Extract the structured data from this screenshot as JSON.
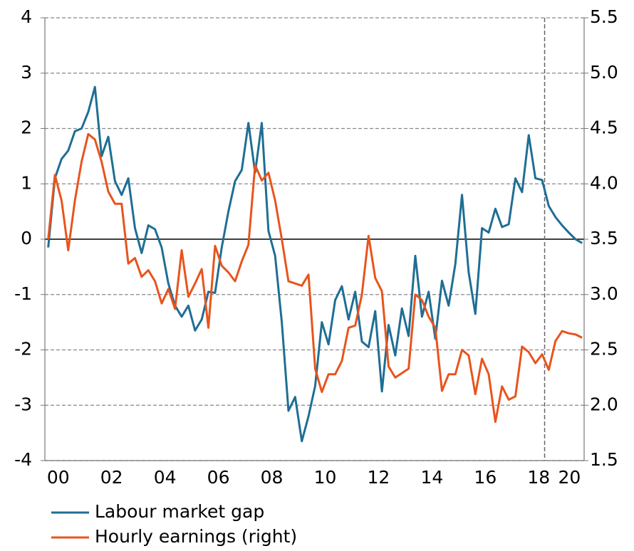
{
  "chart_data": {
    "type": "line",
    "x": [
      0.125,
      0.375,
      0.625,
      0.875,
      1.125,
      1.375,
      1.625,
      1.875,
      2.125,
      2.375,
      2.625,
      2.875,
      3.125,
      3.375,
      3.625,
      3.875,
      4.125,
      4.375,
      4.625,
      4.875,
      5.125,
      5.375,
      5.625,
      5.875,
      6.125,
      6.375,
      6.625,
      6.875,
      7.125,
      7.375,
      7.625,
      7.875,
      8.125,
      8.375,
      8.625,
      8.875,
      9.125,
      9.375,
      9.625,
      9.875,
      10.125,
      10.375,
      10.625,
      10.875,
      11.125,
      11.375,
      11.625,
      11.875,
      12.125,
      12.375,
      12.625,
      12.875,
      13.125,
      13.375,
      13.625,
      13.875,
      14.125,
      14.375,
      14.625,
      14.875,
      15.125,
      15.375,
      15.625,
      15.875,
      16.125,
      16.375,
      16.625,
      16.875,
      17.125,
      17.375,
      17.625,
      17.875,
      18.125,
      18.375,
      18.625,
      18.875,
      19.125,
      19.375,
      19.625,
      19.875,
      20.125
    ],
    "series": [
      {
        "name": "Labour market gap",
        "color": "#1f6e94",
        "axis": "y",
        "values": [
          -0.15,
          1.1,
          1.45,
          1.6,
          1.95,
          2.0,
          2.3,
          2.75,
          1.5,
          1.85,
          1.05,
          0.8,
          1.1,
          0.2,
          -0.25,
          0.25,
          0.18,
          -0.15,
          -0.8,
          -1.2,
          -1.4,
          -1.2,
          -1.65,
          -1.45,
          -0.95,
          -0.97,
          -0.15,
          0.5,
          1.05,
          1.25,
          2.1,
          1.2,
          2.1,
          0.15,
          -0.3,
          -1.5,
          -3.1,
          -2.85,
          -3.65,
          -3.2,
          -2.65,
          -1.5,
          -1.9,
          -1.1,
          -0.85,
          -1.45,
          -0.95,
          -1.85,
          -1.95,
          -1.3,
          -2.75,
          -1.55,
          -2.1,
          -1.25,
          -1.75,
          -0.3,
          -1.4,
          -0.95,
          -1.8,
          -0.75,
          -1.2,
          -0.45,
          0.8,
          -0.6,
          -1.35,
          0.2,
          0.12,
          0.55,
          0.22,
          0.27,
          1.1,
          0.85,
          1.88,
          1.1,
          1.07,
          0.6,
          0.4,
          0.25,
          0.12,
          0.0,
          -0.07
        ]
      },
      {
        "name": "Hourly earnings (right)",
        "color": "#e8541c",
        "axis": "y2",
        "values": [
          3.5,
          4.08,
          3.85,
          3.4,
          3.85,
          4.2,
          4.45,
          4.4,
          4.2,
          3.93,
          3.82,
          3.82,
          3.28,
          3.33,
          3.16,
          3.22,
          3.12,
          2.92,
          3.05,
          2.87,
          3.4,
          2.98,
          3.1,
          3.23,
          2.7,
          3.44,
          3.26,
          3.2,
          3.12,
          3.3,
          3.45,
          4.17,
          4.03,
          4.1,
          3.85,
          3.5,
          3.12,
          3.1,
          3.08,
          3.18,
          2.33,
          2.12,
          2.28,
          2.28,
          2.4,
          2.7,
          2.72,
          3.0,
          3.53,
          3.15,
          3.03,
          2.35,
          2.25,
          2.29,
          2.33,
          3.0,
          2.95,
          2.8,
          2.7,
          2.13,
          2.28,
          2.28,
          2.5,
          2.45,
          2.1,
          2.42,
          2.28,
          1.85,
          2.17,
          2.05,
          2.08,
          2.53,
          2.48,
          2.38,
          2.46,
          2.32,
          2.58,
          2.67,
          2.65,
          2.64,
          2.61
        ]
      }
    ],
    "xlim": [
      0,
      20.2
    ],
    "xticks": [
      {
        "value": 0.5,
        "label": "00"
      },
      {
        "value": 2.5,
        "label": "02"
      },
      {
        "value": 4.5,
        "label": "04"
      },
      {
        "value": 6.5,
        "label": "06"
      },
      {
        "value": 8.5,
        "label": "08"
      },
      {
        "value": 10.5,
        "label": "10"
      },
      {
        "value": 12.5,
        "label": "12"
      },
      {
        "value": 14.5,
        "label": "14"
      },
      {
        "value": 16.5,
        "label": "16"
      },
      {
        "value": 18.5,
        "label": "18"
      },
      {
        "value": 19.65,
        "label": "20"
      }
    ],
    "ylim": [
      -4,
      4
    ],
    "yticks": [
      -4,
      -3,
      -2,
      -1,
      0,
      1,
      2,
      3,
      4
    ],
    "y2lim": [
      1.5,
      5.5
    ],
    "y2ticks": [
      1.5,
      {
        "value": 2,
        "label": "2.0"
      },
      2.5,
      {
        "value": 3,
        "label": "3.0"
      },
      3.5,
      {
        "value": 4,
        "label": "4.0"
      },
      4.5,
      {
        "value": 5,
        "label": "5.0"
      },
      5.5
    ],
    "grid": true,
    "vline": 18.72
  }
}
